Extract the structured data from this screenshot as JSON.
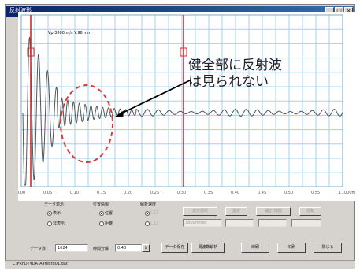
{
  "window": {
    "title": "反射波形"
  },
  "plot": {
    "header": "Vp 3800 m/s   Y:96 mm",
    "x_ticks": [
      "0.00",
      "0.05",
      "0.10",
      "0.15",
      "0.20",
      "0.25",
      "0.30",
      "0.35",
      "0.40",
      "0.45",
      "0.50",
      "0.55",
      "1.1000m"
    ],
    "annotation": {
      "line1": "健全部に反射波",
      "line2": "は見られない"
    }
  },
  "controls": {
    "group1": {
      "title": "データ表示",
      "options": [
        "表示",
        "非表示"
      ],
      "selected": 0
    },
    "group2": {
      "title": "位置情報",
      "options": [
        "位置",
        "距離"
      ],
      "selected": 0
    },
    "group3": {
      "title": "解析速度",
      "options": [
        "□□",
        "□□"
      ],
      "selected": 0
    },
    "buttons_top": [
      "波形選択",
      "設定",
      "補正/補間",
      "反転"
    ],
    "fields_top": [
      "3800m/sec",
      "",
      "",
      ""
    ]
  },
  "bottom": {
    "data_label": "データ数",
    "data_value": "1024",
    "time_label": "時間分解",
    "time_value": "0.48",
    "buttons": [
      "データ保存",
      "周波数解析",
      "印刷",
      "印刷",
      "閉じる"
    ]
  },
  "status": {
    "text": "C:¥RFDT¥DATA¥test001.dat"
  },
  "colors": {
    "window_bg": "#d6d3ce",
    "grid": "#9fd3ec",
    "cursor": "#d12a2a",
    "annotation_ring": "#d83a3a",
    "titlebar": "#0a246a"
  }
}
